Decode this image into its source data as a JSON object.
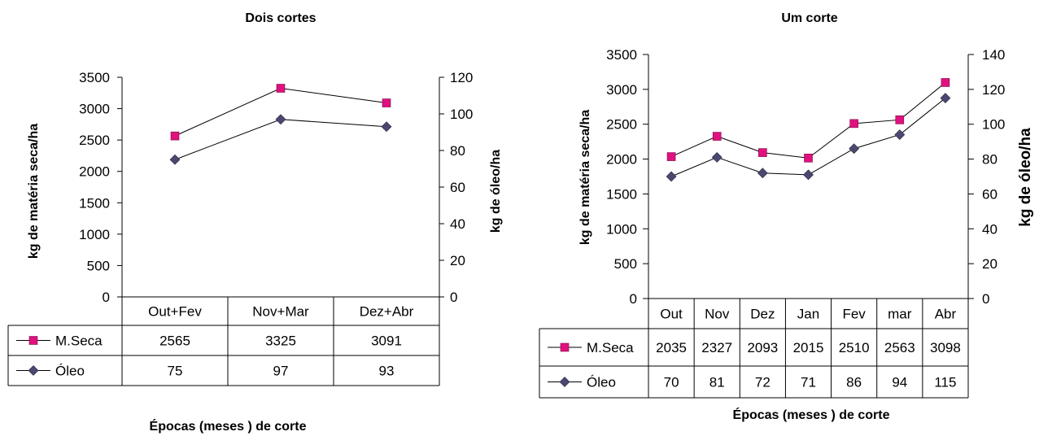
{
  "chart_data": [
    {
      "type": "line",
      "title": "Dois cortes",
      "xlabel": "Épocas (meses ) de corte",
      "ylabel": "kg de matéria seca/ha",
      "y2label": "kg de óleo/ha",
      "categories": [
        "Out+Fev",
        "Nov+Mar",
        "Dez+Abr"
      ],
      "ylim": [
        0,
        3500
      ],
      "y2lim": [
        0,
        120
      ],
      "yticks": [
        "0",
        "500",
        "1000",
        "1500",
        "2000",
        "2500",
        "3000",
        "3500"
      ],
      "y2ticks": [
        "0",
        "20",
        "40",
        "60",
        "80",
        "100",
        "120"
      ],
      "series": [
        {
          "name": "M.Seca",
          "axis": "left",
          "marker": "square",
          "color": "#e0117f",
          "values": [
            2565,
            3325,
            3091
          ],
          "labels": [
            "2565",
            "3325",
            "3091"
          ]
        },
        {
          "name": "Óleo",
          "axis": "right",
          "marker": "diamond",
          "color": "#4a4870",
          "values": [
            75,
            97,
            93
          ],
          "labels": [
            "75",
            "97",
            "93"
          ]
        }
      ],
      "data_table": true
    },
    {
      "type": "line",
      "title": "Um corte",
      "xlabel": "Épocas (meses ) de corte",
      "ylabel": "kg de matéria seca/ha",
      "y2label": "kg de óleo/ha",
      "categories": [
        "Out",
        "Nov",
        "Dez",
        "Jan",
        "Fev",
        "mar",
        "Abr"
      ],
      "ylim": [
        0,
        3500
      ],
      "y2lim": [
        0,
        140
      ],
      "yticks": [
        "0",
        "500",
        "1000",
        "1500",
        "2000",
        "2500",
        "3000",
        "3500"
      ],
      "y2ticks": [
        "0",
        "20",
        "40",
        "60",
        "80",
        "100",
        "120",
        "140"
      ],
      "series": [
        {
          "name": "M.Seca",
          "axis": "left",
          "marker": "square",
          "color": "#e0117f",
          "values": [
            2035,
            2327,
            2093,
            2015,
            2510,
            2563,
            3098
          ],
          "labels": [
            "2035",
            "2327",
            "2093",
            "2015",
            "2510",
            "2563",
            "3098"
          ]
        },
        {
          "name": "Óleo",
          "axis": "right",
          "marker": "diamond",
          "color": "#4a4870",
          "values": [
            70,
            81,
            72,
            71,
            86,
            94,
            115
          ],
          "labels": [
            "70",
            "81",
            "72",
            "71",
            "86",
            "94",
            "115"
          ]
        }
      ],
      "data_table": true
    }
  ]
}
